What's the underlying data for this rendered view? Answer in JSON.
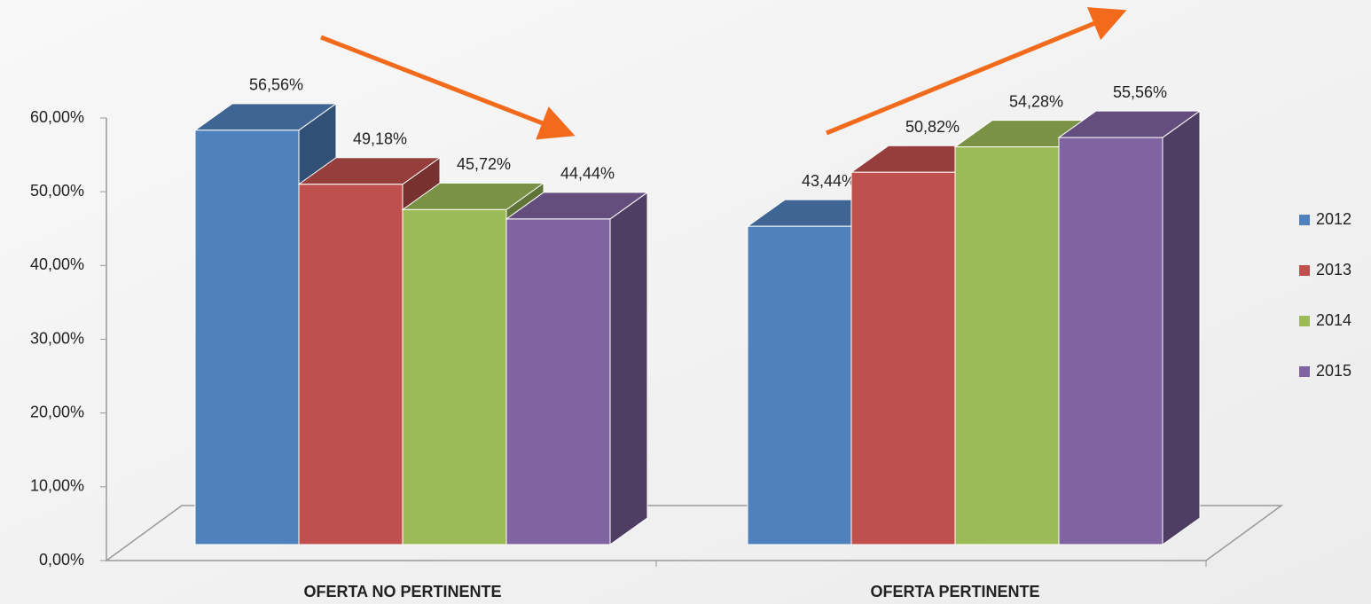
{
  "chart_data": {
    "type": "bar3d",
    "categories": [
      "OFERTA NO PERTINENTE",
      "OFERTA PERTINENTE"
    ],
    "series": [
      {
        "name": "2012",
        "color": "#4f81bd",
        "values": [
          56.56,
          43.44
        ],
        "value_labels": [
          "56,56%",
          "43,44%"
        ]
      },
      {
        "name": "2013",
        "color": "#c0504d",
        "values": [
          49.18,
          50.82
        ],
        "value_labels": [
          "49,18%",
          "50,82%"
        ]
      },
      {
        "name": "2014",
        "color": "#9bbb59",
        "values": [
          45.72,
          54.28
        ],
        "value_labels": [
          "45,72%",
          "54,28%"
        ]
      },
      {
        "name": "2015",
        "color": "#8064a2",
        "values": [
          44.44,
          55.56
        ],
        "value_labels": [
          "44,44%",
          "55,56%"
        ]
      }
    ],
    "ylim": [
      0,
      60
    ],
    "yticks": [
      {
        "value": 0,
        "label": "0,00%"
      },
      {
        "value": 10,
        "label": "10,00%"
      },
      {
        "value": 20,
        "label": "20,00%"
      },
      {
        "value": 30,
        "label": "30,00%"
      },
      {
        "value": 40,
        "label": "40,00%"
      },
      {
        "value": 50,
        "label": "50,00%"
      },
      {
        "value": 60,
        "label": "60,00%"
      }
    ],
    "legend": "right"
  }
}
